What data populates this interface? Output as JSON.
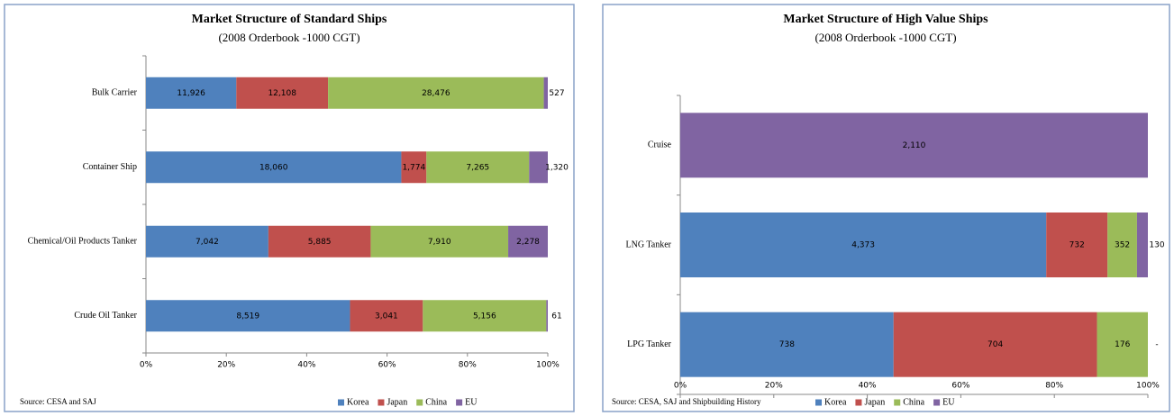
{
  "chart_data": [
    {
      "type": "bar",
      "orientation": "horizontal",
      "stack": "percent",
      "title": "Market Structure of Standard Ships",
      "subtitle": "(2008 Orderbook -1000 CGT)",
      "source": "Source: CESA and SAJ",
      "categories": [
        "Bulk Carrier",
        "Container Ship",
        "Chemical/Oil Products Tanker",
        "Crude Oil Tanker"
      ],
      "series": [
        {
          "name": "Korea",
          "color": "#4f81bd",
          "values": [
            11926,
            18060,
            7042,
            8519
          ],
          "value_labels": [
            "11,926",
            "18,060",
            "7,042",
            "8,519"
          ]
        },
        {
          "name": "Japan",
          "color": "#c0504d",
          "values": [
            12108,
            1774,
            5885,
            3041
          ],
          "value_labels": [
            "12,108",
            "1,774",
            "5,885",
            "3,041"
          ]
        },
        {
          "name": "China",
          "color": "#9bbb59",
          "values": [
            28476,
            7265,
            7910,
            5156
          ],
          "value_labels": [
            "28,476",
            "7,265",
            "7,910",
            "5,156"
          ]
        },
        {
          "name": "EU",
          "color": "#8064a2",
          "values": [
            527,
            1320,
            2278,
            61
          ],
          "value_labels": [
            "527",
            "1,320",
            "2,278",
            "61"
          ]
        }
      ],
      "xlim": [
        0,
        100
      ],
      "xticks": [
        {
          "value": 0,
          "label": "0%"
        },
        {
          "value": 20,
          "label": "20%"
        },
        {
          "value": 40,
          "label": "40%"
        },
        {
          "value": 60,
          "label": "60%"
        },
        {
          "value": 80,
          "label": "80%"
        },
        {
          "value": 100,
          "label": "100%"
        }
      ],
      "legend": "bottom"
    },
    {
      "type": "bar",
      "orientation": "horizontal",
      "stack": "percent",
      "title": "Market Structure of High Value Ships",
      "subtitle": "(2008 Orderbook -1000 CGT)",
      "source": "Source: CESA, SAJ and Shipbuilding History",
      "categories": [
        "Cruise",
        "LNG Tanker",
        "LPG Tanker"
      ],
      "series": [
        {
          "name": "Korea",
          "color": "#4f81bd",
          "values": [
            null,
            4373,
            738
          ],
          "value_labels": [
            null,
            "4,373",
            "738"
          ]
        },
        {
          "name": "Japan",
          "color": "#c0504d",
          "values": [
            null,
            732,
            704
          ],
          "value_labels": [
            null,
            "732",
            "704"
          ]
        },
        {
          "name": "China",
          "color": "#9bbb59",
          "values": [
            null,
            352,
            176
          ],
          "value_labels": [
            null,
            "352",
            "176"
          ]
        },
        {
          "name": "EU",
          "color": "#8064a2",
          "values": [
            2110,
            130,
            0
          ],
          "value_labels": [
            "2,110",
            "130",
            "-"
          ]
        }
      ],
      "xlim": [
        0,
        100
      ],
      "xticks": [
        {
          "value": 0,
          "label": "0%"
        },
        {
          "value": 20,
          "label": "20%"
        },
        {
          "value": 40,
          "label": "40%"
        },
        {
          "value": 60,
          "label": "60%"
        },
        {
          "value": 80,
          "label": "80%"
        },
        {
          "value": 100,
          "label": "100%"
        }
      ],
      "legend": "bottom"
    }
  ]
}
